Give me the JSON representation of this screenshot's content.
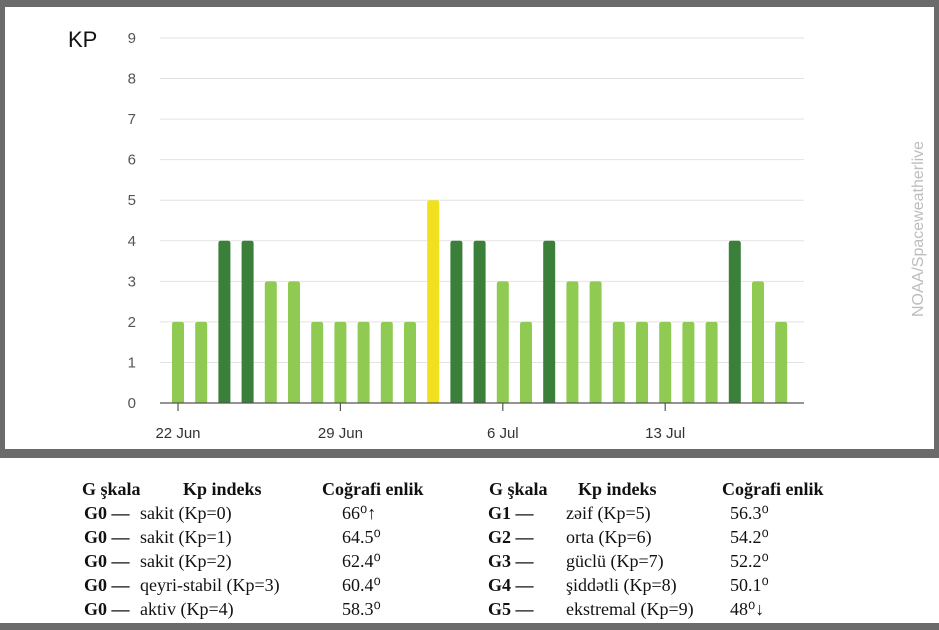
{
  "chart_data": {
    "type": "bar",
    "title": "",
    "ylabel": "KP",
    "xlabel": "",
    "ylim": [
      0,
      9
    ],
    "yticks": [
      "0",
      "1",
      "2",
      "3",
      "4",
      "5",
      "6",
      "7",
      "8",
      "9"
    ],
    "x_tick_labels": [
      {
        "label": "22 Jun",
        "date": "2024-06-22"
      },
      {
        "label": "29 Jun",
        "date": "2024-06-29"
      },
      {
        "label": "6 Jul",
        "date": "2024-07-06"
      },
      {
        "label": "13 Jul",
        "date": "2024-07-13"
      }
    ],
    "grid": true,
    "dates": [
      "2024-06-22",
      "2024-06-23",
      "2024-06-24",
      "2024-06-25",
      "2024-06-26",
      "2024-06-27",
      "2024-06-28",
      "2024-06-29",
      "2024-06-30",
      "2024-07-01",
      "2024-07-02",
      "2024-07-03",
      "2024-07-04",
      "2024-07-05",
      "2024-07-06",
      "2024-07-07",
      "2024-07-08",
      "2024-07-09",
      "2024-07-10",
      "2024-07-11",
      "2024-07-12",
      "2024-07-13",
      "2024-07-14",
      "2024-07-15",
      "2024-07-16",
      "2024-07-17",
      "2024-07-18"
    ],
    "values": [
      2,
      2,
      4,
      4,
      3,
      3,
      2,
      2,
      2,
      2,
      2,
      5,
      4,
      4,
      3,
      2,
      4,
      3,
      3,
      2,
      2,
      2,
      2,
      2,
      4,
      3,
      2
    ],
    "colors": {
      "quiet": "#8fcb52",
      "active": "#3a7f3a",
      "storm": "#f0e01e"
    },
    "watermark": "NOAA/Spaceweatherlive"
  },
  "legend": {
    "left": {
      "headers": [
        "G şkala",
        "Kp indeks",
        "Coğrafi enlik"
      ],
      "rows": [
        {
          "code": "G0",
          "desc": "sakit (Kp=0)",
          "lat": "66⁰↑"
        },
        {
          "code": "G0",
          "desc": "sakit (Kp=1)",
          "lat": "64.5⁰"
        },
        {
          "code": "G0",
          "desc": "sakit (Kp=2)",
          "lat": "62.4⁰"
        },
        {
          "code": "G0",
          "desc": "qeyri-stabil (Kp=3)",
          "lat": "60.4⁰"
        },
        {
          "code": "G0",
          "desc": "aktiv (Kp=4)",
          "lat": "58.3⁰"
        }
      ]
    },
    "right": {
      "headers": [
        "G şkala",
        "Kp indeks",
        "Coğrafi enlik"
      ],
      "rows": [
        {
          "code": "G1",
          "desc": "zəif (Kp=5)",
          "lat": "56.3⁰"
        },
        {
          "code": "G2",
          "desc": "orta (Kp=6)",
          "lat": "54.2⁰"
        },
        {
          "code": "G3",
          "desc": "güclü (Kp=7)",
          "lat": "52.2⁰"
        },
        {
          "code": "G4",
          "desc": "şiddətli (Kp=8)",
          "lat": "50.1⁰"
        },
        {
          "code": "G5",
          "desc": "ekstremal (Kp=9)",
          "lat": "48⁰↓"
        }
      ]
    }
  }
}
